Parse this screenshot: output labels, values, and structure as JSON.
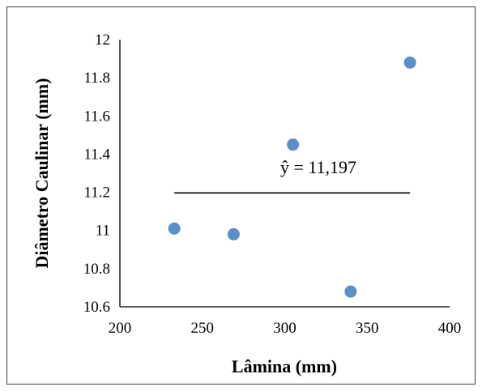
{
  "chart_data": {
    "type": "scatter",
    "xlabel": "Lâmina (mm)",
    "ylabel": "Diâmetro Caulinar (mm)",
    "xlim": [
      200,
      400
    ],
    "ylim": [
      10.6,
      12
    ],
    "x_ticks": [
      "200",
      "250",
      "300",
      "350",
      "400"
    ],
    "y_ticks": [
      "10.6",
      "10.8",
      "11",
      "11.2",
      "11.4",
      "11.6",
      "11.8",
      "12"
    ],
    "grid": false,
    "legend": "none",
    "marker_color": "#5b8fc7",
    "series": [
      {
        "points": [
          {
            "x": 233,
            "y": 11.01
          },
          {
            "x": 269,
            "y": 10.98
          },
          {
            "x": 305,
            "y": 11.45
          },
          {
            "x": 340,
            "y": 10.68
          },
          {
            "x": 376,
            "y": 11.88
          }
        ]
      }
    ],
    "fit_line": {
      "x": [
        233,
        376
      ],
      "y": 11.197
    },
    "annotation": "ŷ = 11,197"
  }
}
